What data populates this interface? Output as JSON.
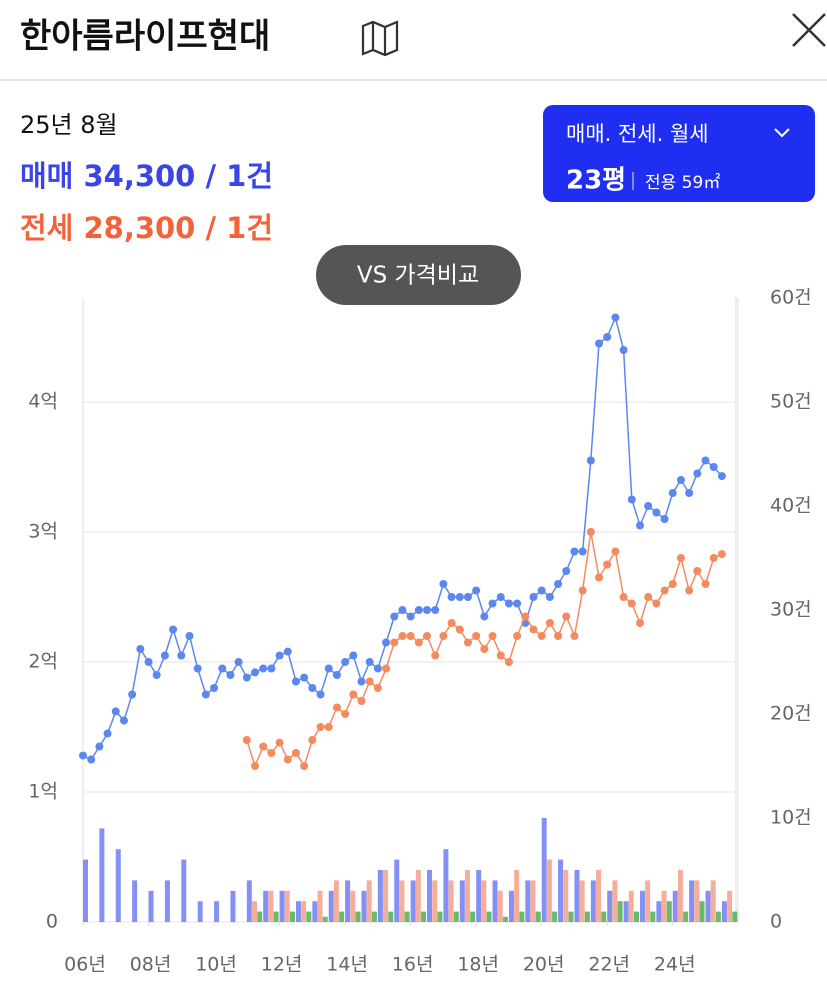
{
  "header": {
    "title": "한아름라이프현대"
  },
  "info": {
    "month": "25년 8월",
    "sale": "매매 34,300 / 1건",
    "jeonse": "전세 28,300 / 1건"
  },
  "filter": {
    "types": "매매. 전세. 월세",
    "size": "23평",
    "area": "전용 59㎡"
  },
  "compare_button": "VS 가격비교",
  "chart_data": {
    "type": "combo",
    "xlim": [
      2006,
      2025.9
    ],
    "xticks": [
      {
        "value": 2006,
        "label": "06년"
      },
      {
        "value": 2008,
        "label": "08년"
      },
      {
        "value": 2010,
        "label": "10년"
      },
      {
        "value": 2012,
        "label": "12년"
      },
      {
        "value": 2014,
        "label": "14년"
      },
      {
        "value": 2016,
        "label": "16년"
      },
      {
        "value": 2018,
        "label": "18년"
      },
      {
        "value": 2020,
        "label": "20년"
      },
      {
        "value": 2022,
        "label": "22년"
      },
      {
        "value": 2024,
        "label": "24년"
      }
    ],
    "ylim": [
      0,
      4.8
    ],
    "yticks": [
      0,
      {
        "value": 1,
        "label": "1억"
      },
      {
        "value": 2,
        "label": "2억"
      },
      {
        "value": 3,
        "label": "3억"
      },
      {
        "value": 4,
        "label": "4억"
      }
    ],
    "y2lim": [
      0,
      60
    ],
    "y2ticks": [
      0,
      {
        "value": 10,
        "label": "10건"
      },
      {
        "value": 20,
        "label": "20건"
      },
      {
        "value": 30,
        "label": "30건"
      },
      {
        "value": 40,
        "label": "40건"
      },
      {
        "value": 50,
        "label": "50건"
      },
      {
        "value": 60,
        "label": "60건"
      }
    ],
    "grid": true,
    "series": [
      {
        "type": "bar",
        "axis": "y2",
        "color": "#6f7cf2",
        "offset": 0,
        "x": [
          2006,
          2006.5,
          2007,
          2007.5,
          2008,
          2008.5,
          2009,
          2009.5,
          2010,
          2010.5,
          2011,
          2011.5,
          2012,
          2012.5,
          2013,
          2013.5,
          2014,
          2014.5,
          2015,
          2015.5,
          2016,
          2016.5,
          2017,
          2017.5,
          2018,
          2018.5,
          2019,
          2019.5,
          2020,
          2020.5,
          2021,
          2021.5,
          2022,
          2022.5,
          2023,
          2023.5,
          2024,
          2024.5,
          2025,
          2025.5
        ],
        "values": [
          6,
          9,
          7,
          4,
          3,
          4,
          6,
          2,
          2,
          3,
          4,
          3,
          3,
          2,
          2,
          3,
          4,
          3,
          5,
          6,
          4,
          5,
          7,
          4,
          5,
          4,
          3,
          4,
          10,
          6,
          5,
          4,
          3,
          2,
          3,
          2,
          3,
          4,
          3,
          2
        ]
      },
      {
        "type": "bar",
        "axis": "y2",
        "color": "#f5a088",
        "offset": 1,
        "x": [
          2006,
          2006.5,
          2007,
          2007.5,
          2008,
          2008.5,
          2009,
          2009.5,
          2010,
          2010.5,
          2011,
          2011.5,
          2012,
          2012.5,
          2013,
          2013.5,
          2014,
          2014.5,
          2015,
          2015.5,
          2016,
          2016.5,
          2017,
          2017.5,
          2018,
          2018.5,
          2019,
          2019.5,
          2020,
          2020.5,
          2021,
          2021.5,
          2022,
          2022.5,
          2023,
          2023.5,
          2024,
          2024.5,
          2025,
          2025.5
        ],
        "values": [
          null,
          null,
          null,
          null,
          null,
          null,
          null,
          null,
          null,
          null,
          2,
          3,
          3,
          2,
          3,
          4,
          3,
          4,
          5,
          4,
          5,
          4,
          4,
          5,
          4,
          3,
          5,
          4,
          6,
          5,
          4,
          5,
          4,
          3,
          4,
          3,
          5,
          4,
          4,
          3
        ]
      },
      {
        "type": "bar",
        "axis": "y2",
        "color": "#4caf50",
        "offset": 2,
        "x": [
          2006,
          2006.5,
          2007,
          2007.5,
          2008,
          2008.5,
          2009,
          2009.5,
          2010,
          2010.5,
          2011,
          2011.5,
          2012,
          2012.5,
          2013,
          2013.5,
          2014,
          2014.5,
          2015,
          2015.5,
          2016,
          2016.5,
          2017,
          2017.5,
          2018,
          2018.5,
          2019,
          2019.5,
          2020,
          2020.5,
          2021,
          2021.5,
          2022,
          2022.5,
          2023,
          2023.5,
          2024,
          2024.5,
          2025,
          2025.5
        ],
        "values": [
          null,
          null,
          null,
          null,
          null,
          null,
          null,
          null,
          null,
          null,
          1,
          1,
          1,
          1,
          0.5,
          1,
          1,
          1,
          1,
          1,
          1,
          1,
          1,
          1,
          1,
          0.5,
          1,
          1,
          1,
          1,
          1,
          1,
          2,
          1,
          1,
          2,
          1,
          2,
          1,
          1
        ]
      },
      {
        "type": "line",
        "color": "#5b87ee",
        "x": [
          2006,
          2006.25,
          2006.5,
          2006.75,
          2007,
          2007.25,
          2007.5,
          2007.75,
          2008,
          2008.25,
          2008.5,
          2008.75,
          2009,
          2009.25,
          2009.5,
          2009.75,
          2010,
          2010.25,
          2010.5,
          2010.75,
          2011,
          2011.25,
          2011.5,
          2011.75,
          2012,
          2012.25,
          2012.5,
          2012.75,
          2013,
          2013.25,
          2013.5,
          2013.75,
          2014,
          2014.25,
          2014.5,
          2014.75,
          2015,
          2015.25,
          2015.5,
          2015.75,
          2016,
          2016.25,
          2016.5,
          2016.75,
          2017,
          2017.25,
          2017.5,
          2017.75,
          2018,
          2018.25,
          2018.5,
          2018.75,
          2019,
          2019.25,
          2019.5,
          2019.75,
          2020,
          2020.25,
          2020.5,
          2020.75,
          2021,
          2021.25,
          2021.5,
          2021.75,
          2022,
          2022.25,
          2022.5,
          2022.75,
          2023,
          2023.25,
          2023.5,
          2023.75,
          2024,
          2024.25,
          2024.5,
          2024.75,
          2025,
          2025.25,
          2025.5
        ],
        "values": [
          1.28,
          1.25,
          1.35,
          1.45,
          1.62,
          1.55,
          1.75,
          2.1,
          2.0,
          1.9,
          2.05,
          2.25,
          2.05,
          2.2,
          1.95,
          1.75,
          1.8,
          1.95,
          1.9,
          2.0,
          1.88,
          1.92,
          1.95,
          1.95,
          2.05,
          2.08,
          1.85,
          1.88,
          1.8,
          1.75,
          1.95,
          1.9,
          2.0,
          2.05,
          1.85,
          2.0,
          1.95,
          2.15,
          2.35,
          2.4,
          2.35,
          2.4,
          2.4,
          2.4,
          2.6,
          2.5,
          2.5,
          2.5,
          2.55,
          2.35,
          2.45,
          2.5,
          2.45,
          2.45,
          2.3,
          2.5,
          2.55,
          2.5,
          2.6,
          2.7,
          2.85,
          2.85,
          3.55,
          4.45,
          4.5,
          4.65,
          4.4,
          3.25,
          3.05,
          3.2,
          3.15,
          3.1,
          3.3,
          3.4,
          3.3,
          3.45,
          3.55,
          3.5,
          3.43
        ]
      },
      {
        "type": "line",
        "color": "#f58a5e",
        "x": [
          2011,
          2011.25,
          2011.5,
          2011.75,
          2012,
          2012.25,
          2012.5,
          2012.75,
          2013,
          2013.25,
          2013.5,
          2013.75,
          2014,
          2014.25,
          2014.5,
          2014.75,
          2015,
          2015.25,
          2015.5,
          2015.75,
          2016,
          2016.25,
          2016.5,
          2016.75,
          2017,
          2017.25,
          2017.5,
          2017.75,
          2018,
          2018.25,
          2018.5,
          2018.75,
          2019,
          2019.25,
          2019.5,
          2019.75,
          2020,
          2020.25,
          2020.5,
          2020.75,
          2021,
          2021.25,
          2021.5,
          2021.75,
          2022,
          2022.25,
          2022.5,
          2022.75,
          2023,
          2023.25,
          2023.5,
          2023.75,
          2024,
          2024.25,
          2024.5,
          2024.75,
          2025,
          2025.25,
          2025.5
        ],
        "values": [
          1.4,
          1.2,
          1.35,
          1.3,
          1.38,
          1.25,
          1.3,
          1.2,
          1.4,
          1.5,
          1.5,
          1.65,
          1.6,
          1.75,
          1.7,
          1.85,
          1.8,
          1.95,
          2.15,
          2.2,
          2.2,
          2.15,
          2.2,
          2.05,
          2.2,
          2.3,
          2.25,
          2.15,
          2.2,
          2.1,
          2.2,
          2.05,
          2.0,
          2.2,
          2.35,
          2.25,
          2.2,
          2.3,
          2.2,
          2.35,
          2.2,
          2.55,
          3.0,
          2.65,
          2.75,
          2.85,
          2.5,
          2.45,
          2.3,
          2.5,
          2.45,
          2.55,
          2.6,
          2.8,
          2.55,
          2.7,
          2.6,
          2.8,
          2.83
        ]
      }
    ]
  }
}
